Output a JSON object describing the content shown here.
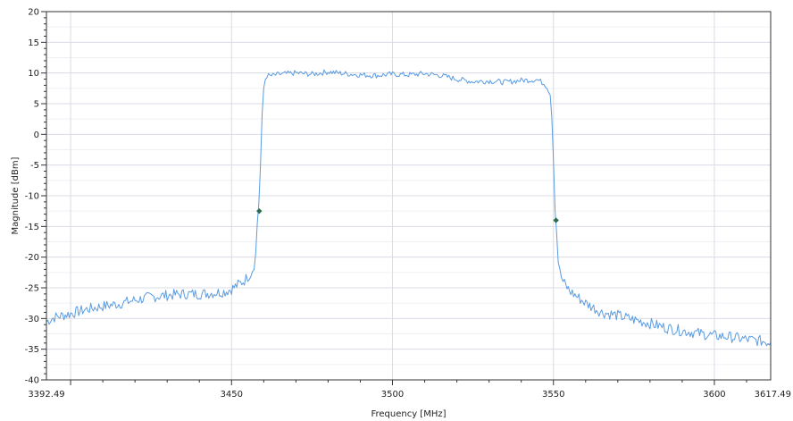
{
  "chart_data": {
    "type": "line",
    "title": "",
    "xlabel": "Frequency [MHz]",
    "ylabel": "Magnitude [dBm]",
    "xlim": [
      3392.49,
      3617.49
    ],
    "ylim": [
      -40,
      20
    ],
    "x_tick_labels": [
      "3392.49",
      "3450",
      "3500",
      "3550",
      "3600",
      "3617.49"
    ],
    "x_tick_values": [
      3392.49,
      3450,
      3500,
      3550,
      3600,
      3617.49
    ],
    "x_gridlines": [
      3400,
      3450,
      3500,
      3550,
      3600
    ],
    "y_tick_labels": [
      "20",
      "15",
      "10",
      "5",
      "0",
      "-5",
      "-10",
      "-15",
      "-20",
      "-25",
      "-30",
      "-35",
      "-40"
    ],
    "y_tick_values": [
      20,
      15,
      10,
      5,
      0,
      -5,
      -10,
      -15,
      -20,
      -25,
      -30,
      -35,
      -40
    ],
    "grid": true,
    "legend": "none",
    "line_color": "#5b9be0",
    "marker_color": "#2e6b4f",
    "series": [
      {
        "x": [
          3392.49,
          3395,
          3400,
          3405,
          3410,
          3415,
          3420,
          3425,
          3430,
          3435,
          3440,
          3445,
          3448,
          3450,
          3452,
          3454,
          3455,
          3456,
          3456.5,
          3457,
          3457.5,
          3458,
          3458.5,
          3459,
          3459.5,
          3460,
          3460.5,
          3461,
          3462,
          3465,
          3470,
          3475,
          3480,
          3485,
          3490,
          3495,
          3500,
          3505,
          3510,
          3515,
          3520,
          3525,
          3530,
          3535,
          3540,
          3545,
          3546,
          3547,
          3548,
          3549,
          3549.5,
          3550,
          3550.5,
          3551,
          3551.5,
          3552,
          3553,
          3555,
          3560,
          3565,
          3570,
          3575,
          3580,
          3585,
          3590,
          3595,
          3600,
          3605,
          3610,
          3615,
          3617.49
        ],
        "y": [
          -30.5,
          -29.8,
          -29.2,
          -28.5,
          -28.0,
          -27.6,
          -27.0,
          -26.5,
          -26.2,
          -26.0,
          -26.0,
          -25.8,
          -25.6,
          -25.2,
          -24.5,
          -23.8,
          -23.2,
          -22.6,
          -22.0,
          -21.2,
          -19.5,
          -14.5,
          -11.0,
          -5.0,
          3.0,
          7.5,
          9.0,
          9.6,
          9.5,
          9.8,
          10.0,
          9.8,
          10.2,
          9.9,
          9.7,
          9.6,
          9.8,
          9.7,
          9.9,
          9.6,
          9.0,
          8.6,
          8.7,
          8.5,
          8.8,
          8.9,
          8.6,
          8.3,
          7.8,
          6.5,
          3.0,
          -4.0,
          -12.0,
          -16.0,
          -20.5,
          -22.5,
          -24.0,
          -25.5,
          -27.5,
          -29.0,
          -29.5,
          -30.2,
          -30.8,
          -31.5,
          -32.0,
          -32.4,
          -32.8,
          -33.0,
          -33.4,
          -33.7,
          -33.9
        ]
      }
    ],
    "markers": [
      {
        "x": 3458.6,
        "y": -12.5
      },
      {
        "x": 3550.8,
        "y": -14.0
      }
    ]
  }
}
